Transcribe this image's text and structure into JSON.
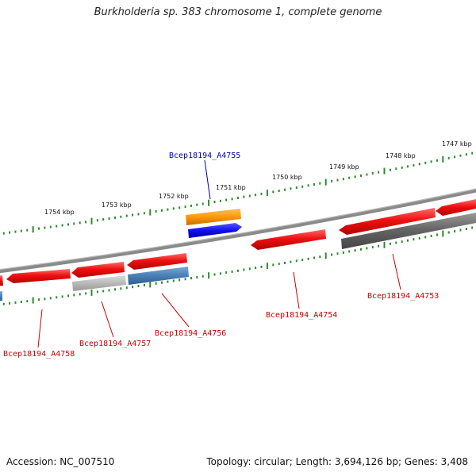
{
  "title": "Burkholderia sp. 383 chromosome 1, complete genome",
  "footer": {
    "accession": "Accession: NC_007510",
    "summary": "Topology: circular; Length: 3,694,126 bp; Genes: 3,408"
  },
  "colors": {
    "tick_green": "#2e8b2e",
    "backbone": "#8a8a8a",
    "red_gene": "#ee1111",
    "gray_gene": "#666666",
    "light_gray_gene": "#b8b8b8",
    "steel_gene": "#4a7fb5",
    "orange_gene": "#ff9900",
    "blue_gene": "#1010ee",
    "label_red": "#cc0000",
    "label_blue": "#0000aa"
  },
  "scale": {
    "ticks": [
      "1754 kbp",
      "1753 kbp",
      "1752 kbp",
      "1751 kbp",
      "1750 kbp",
      "1749 kbp",
      "1748 kbp",
      "1747 kbp"
    ]
  },
  "genes": [
    {
      "label": "Bcep18194_A4758",
      "color": "red"
    },
    {
      "label": "Bcep18194_A4757",
      "color": "red"
    },
    {
      "label": "Bcep18194_A4756",
      "color": "red"
    },
    {
      "label": "Bcep18194_A4755",
      "color": "blue"
    },
    {
      "label": "Bcep18194_A4754",
      "color": "red"
    },
    {
      "label": "Bcep18194_A4753",
      "color": "red"
    }
  ]
}
